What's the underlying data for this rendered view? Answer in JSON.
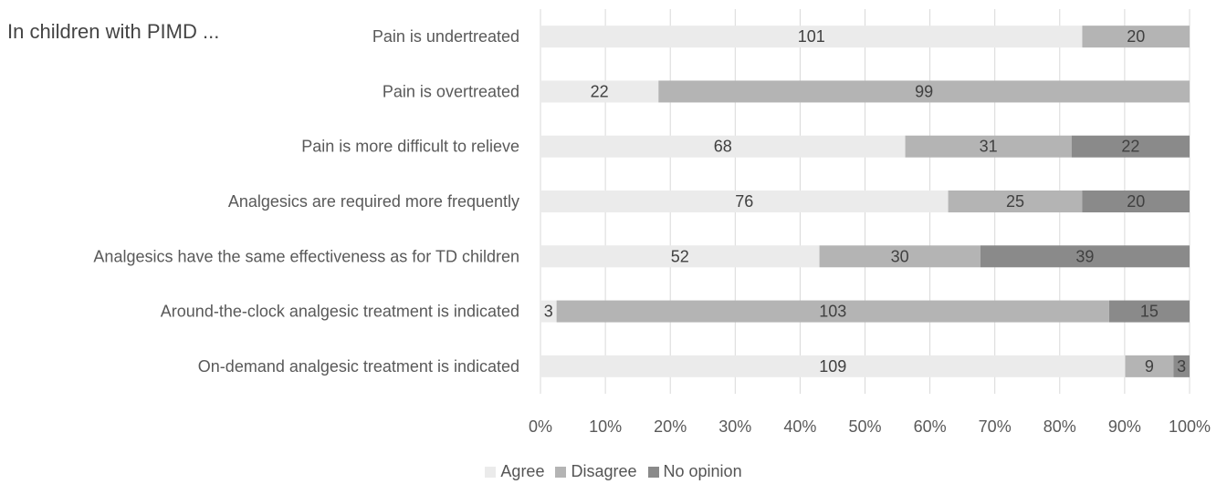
{
  "intro_text": "In children with PIMD ...",
  "chart_data": {
    "type": "bar",
    "orientation": "horizontal",
    "stacking": "percent",
    "categories": [
      "Pain is undertreated",
      "Pain is overtreated",
      "Pain is more difficult to relieve",
      "Analgesics are required more frequently",
      "Analgesics have the same effectiveness as for TD children",
      "Around-the-clock analgesic treatment is indicated",
      "On-demand analgesic treatment is indicated"
    ],
    "series": [
      {
        "name": "Agree",
        "color": "#ebebeb",
        "values": [
          101,
          22,
          68,
          76,
          52,
          3,
          109
        ]
      },
      {
        "name": "Disagree",
        "color": "#b4b4b4",
        "values": [
          20,
          99,
          31,
          25,
          30,
          103,
          9
        ]
      },
      {
        "name": "No opinion",
        "color": "#8a8a8a",
        "values": [
          0,
          0,
          22,
          20,
          39,
          15,
          3
        ]
      }
    ],
    "xlim": [
      0,
      100
    ],
    "x_ticks": [
      "0%",
      "10%",
      "20%",
      "30%",
      "40%",
      "50%",
      "60%",
      "70%",
      "80%",
      "90%",
      "100%"
    ],
    "grid": "vertical",
    "legend_position": "bottom"
  }
}
